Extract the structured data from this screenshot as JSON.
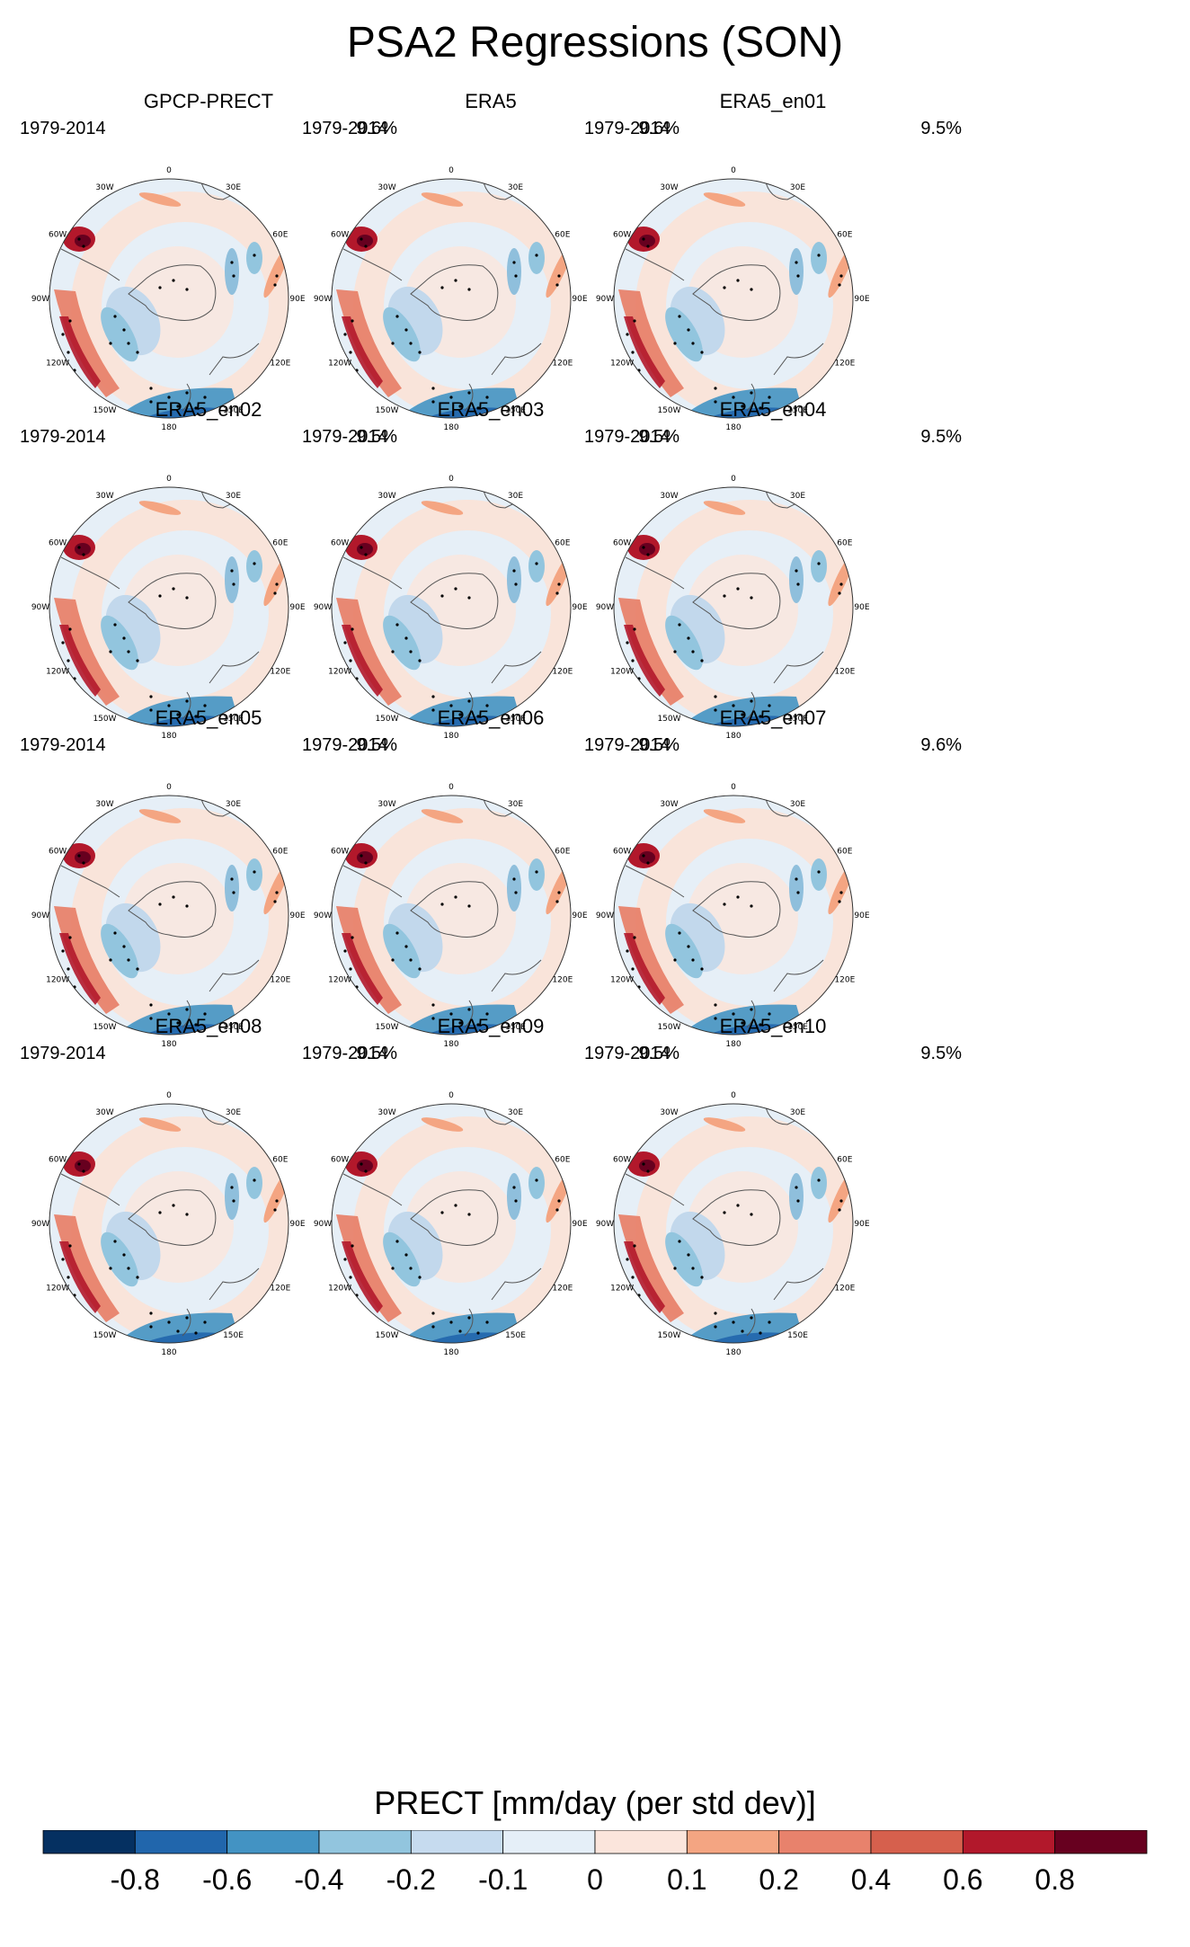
{
  "title": "PSA2 Regressions (SON)",
  "panels": [
    {
      "name": "GPCP-PRECT",
      "period": "1979-2014",
      "pct": "9.6%"
    },
    {
      "name": "ERA5",
      "period": "1979-2014",
      "pct": "9.6%"
    },
    {
      "name": "ERA5_en01",
      "period": "1979-2014",
      "pct": "9.5%"
    },
    {
      "name": "ERA5_en02",
      "period": "1979-2014",
      "pct": "9.5%"
    },
    {
      "name": "ERA5_en03",
      "period": "1979-2014",
      "pct": "9.5%"
    },
    {
      "name": "ERA5_en04",
      "period": "1979-2014",
      "pct": "9.5%"
    },
    {
      "name": "ERA5_en05",
      "period": "1979-2014",
      "pct": "9.5%"
    },
    {
      "name": "ERA5_en06",
      "period": "1979-2014",
      "pct": "9.5%"
    },
    {
      "name": "ERA5_en07",
      "period": "1979-2014",
      "pct": "9.6%"
    },
    {
      "name": "ERA5_en08",
      "period": "1979-2014",
      "pct": "9.5%"
    },
    {
      "name": "ERA5_en09",
      "period": "1979-2014",
      "pct": "9.5%"
    },
    {
      "name": "ERA5_en10",
      "period": "1979-2014",
      "pct": "9.5%"
    }
  ],
  "map_labels": {
    "lon_0": "0",
    "lon_30e": "30E",
    "lon_60e": "60E",
    "lon_90e": "90E",
    "lon_120e": "120E",
    "lon_150e": "150E",
    "lon_180": "180",
    "lon_150w": "150W",
    "lon_120w": "120W",
    "lon_90w": "90W",
    "lon_60w": "60W",
    "lon_30w": "30W"
  },
  "colorbar": {
    "title": "PRECT [mm/day (per std dev)]",
    "ticks": [
      "-0.8",
      "-0.6",
      "-0.4",
      "-0.2",
      "-0.1",
      "0",
      "0.1",
      "0.2",
      "0.4",
      "0.6",
      "0.8"
    ],
    "colors": [
      "#053061",
      "#2166ac",
      "#4393c3",
      "#92c5de",
      "#c6dbef",
      "#e5eff8",
      "#fbe5dc",
      "#f4a582",
      "#e8826c",
      "#d6604d",
      "#b2182b",
      "#67001f"
    ]
  }
}
